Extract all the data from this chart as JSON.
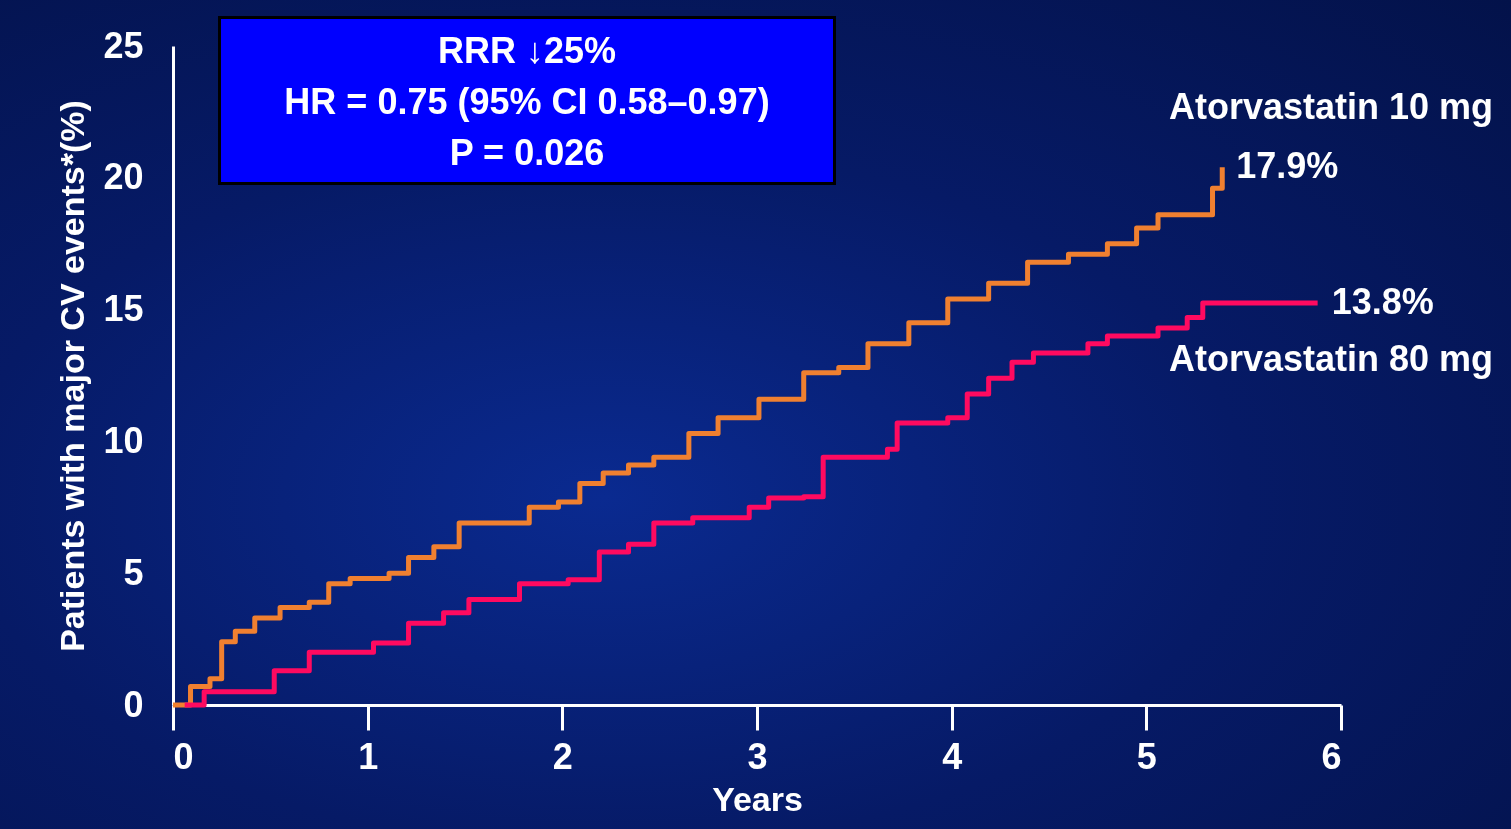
{
  "chart_data": {
    "type": "step",
    "xlabel": "Years",
    "ylabel": "Patients with major CV events*(%)",
    "xlim": [
      0,
      6
    ],
    "xticks": [
      0,
      1,
      2,
      3,
      4,
      5,
      6
    ],
    "ylim": [
      0,
      25
    ],
    "yticks": [
      0,
      5,
      10,
      15,
      20,
      25
    ],
    "grid": false,
    "legend": false,
    "line_style": "solid",
    "marker": "none",
    "annotations": [
      "RRR ↓25%",
      "HR = 0.75 (95% CI 0.58–0.97)",
      "P = 0.026",
      {
        "text": "17.9%",
        "x": 5.39,
        "y": 20.4
      },
      {
        "text": "13.8%",
        "x": 5.88,
        "y": 15.25
      }
    ],
    "series": [
      {
        "name": "Atorvastatin 10 mg",
        "color": "#f08030",
        "x": [
          0,
          0.09,
          0.19,
          0.25,
          0.32,
          0.42,
          0.55,
          0.7,
          0.8,
          0.91,
          1.11,
          1.21,
          1.34,
          1.47,
          1.7,
          1.83,
          1.98,
          2.09,
          2.21,
          2.34,
          2.47,
          2.65,
          2.8,
          3.01,
          3.24,
          3.42,
          3.57,
          3.78,
          3.98,
          4.19,
          4.39,
          4.6,
          4.8,
          4.95,
          5.06,
          5.31,
          5.34,
          5.39
        ],
        "values": [
          0,
          0.7,
          1.0,
          2.4,
          2.8,
          3.3,
          3.7,
          3.9,
          4.6,
          4.8,
          5.0,
          5.6,
          6.0,
          6.9,
          6.9,
          7.5,
          7.7,
          8.4,
          8.8,
          9.1,
          9.4,
          10.3,
          10.9,
          11.6,
          12.6,
          12.8,
          13.7,
          14.5,
          15.4,
          16.0,
          16.8,
          17.1,
          17.5,
          18.1,
          18.6,
          18.6,
          19.6,
          20.4
        ]
      },
      {
        "name": "Atorvastatin 80 mg",
        "color": "#ff0a60",
        "x": [
          0.06,
          0.16,
          0.42,
          0.52,
          0.63,
          0.7,
          0.91,
          1.03,
          1.21,
          1.39,
          1.52,
          1.78,
          2.03,
          2.19,
          2.34,
          2.47,
          2.67,
          2.96,
          3.06,
          3.24,
          3.34,
          3.67,
          3.72,
          3.98,
          4.08,
          4.19,
          4.31,
          4.42,
          4.7,
          4.8,
          5.06,
          5.21,
          5.29,
          5.88
        ],
        "values": [
          0,
          0.5,
          0.5,
          1.3,
          1.3,
          2.0,
          2.0,
          2.35,
          3.1,
          3.5,
          4.0,
          4.6,
          4.75,
          5.8,
          6.1,
          6.9,
          7.1,
          7.5,
          7.85,
          7.9,
          9.4,
          9.7,
          10.7,
          10.9,
          11.8,
          12.4,
          13.0,
          13.35,
          13.7,
          14.0,
          14.3,
          14.7,
          15.25,
          15.25
        ]
      }
    ]
  }
}
